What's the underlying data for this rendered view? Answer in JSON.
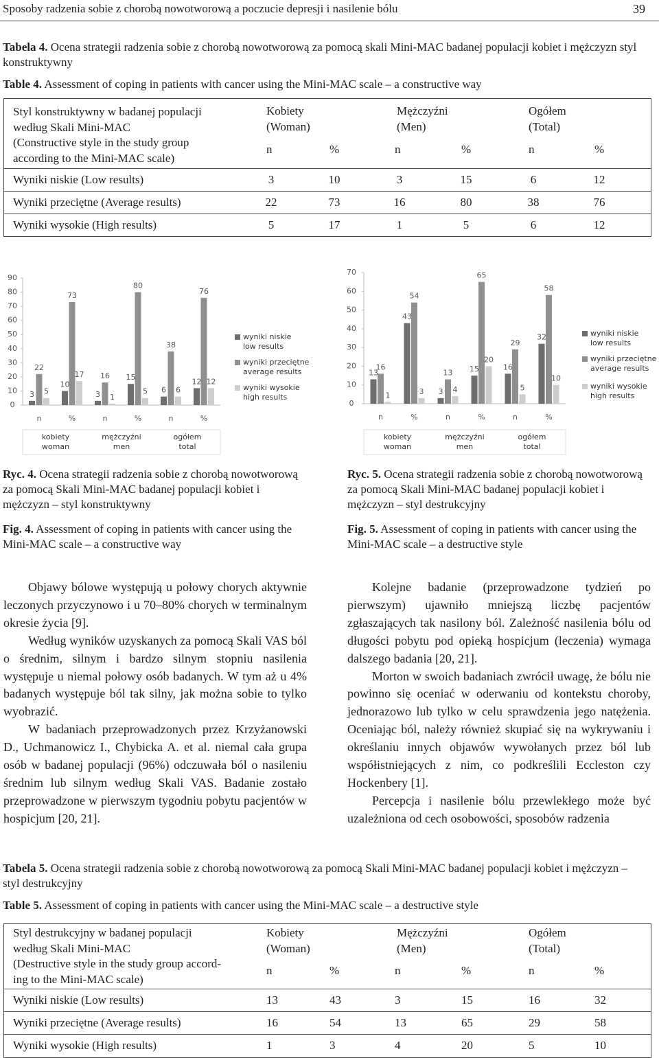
{
  "header": {
    "title": "Sposoby radzenia sobie z chorobą nowotworową a poczucie depresji i nasilenie bólu",
    "page": "39"
  },
  "table4": {
    "label": "Tabela 4.",
    "caption": "Ocena strategii radzenia sobie z chorobą nowotworową za pomocą skali Mini-MAC badanej populacji kobiet i mężczyzn styl konstruktywny",
    "label_en": "Table 4.",
    "caption_en": "Assessment of coping in patients with cancer using the Mini-MAC scale – a constructive way",
    "style": [
      "Styl konstruktywny w badanej populacji",
      "według Skali Mini-MAC",
      "(Constructive style in the study group",
      "according to the Mini-MAC scale)"
    ],
    "groups": [
      [
        "Kobiety",
        "(Woman)"
      ],
      [
        "Mężczyźni",
        "(Men)"
      ],
      [
        "Ogółem",
        "(Total)"
      ]
    ],
    "sub": [
      "n",
      "%",
      "n",
      "%",
      "n",
      "%"
    ],
    "rows": [
      [
        "Wyniki niskie (Low results)",
        3,
        10,
        3,
        15,
        6,
        12
      ],
      [
        "Wyniki przeciętne (Average results)",
        22,
        73,
        16,
        80,
        38,
        76
      ],
      [
        "Wyniki wysokie (High results)",
        5,
        17,
        1,
        5,
        6,
        12
      ]
    ]
  },
  "chart_data": [
    {
      "type": "bar",
      "categories": [
        "n",
        "%",
        "n",
        "%",
        "n",
        "%"
      ],
      "groups": [
        [
          "kobiety",
          "woman"
        ],
        [
          "mężczyźni",
          "men"
        ],
        [
          "ogółem",
          "total"
        ]
      ],
      "series": [
        {
          "name": "wyniki niskie",
          "name_en": "low results",
          "color": "#6e6e6e",
          "values": [
            3,
            10,
            3,
            15,
            6,
            12
          ]
        },
        {
          "name": "wyniki przeciętne",
          "name_en": "average results",
          "color": "#8f8f8f",
          "values": [
            22,
            73,
            16,
            80,
            38,
            76
          ]
        },
        {
          "name": "wyniki wysokie",
          "name_en": "high results",
          "color": "#cdcdcd",
          "values": [
            5,
            17,
            1,
            5,
            6,
            12
          ]
        }
      ],
      "ylim": [
        0,
        90
      ],
      "yticks": [
        0,
        10,
        20,
        30,
        40,
        50,
        60,
        70,
        80,
        90
      ],
      "grid": false,
      "legend": "right"
    },
    {
      "type": "bar",
      "categories": [
        "n",
        "%",
        "n",
        "%",
        "n",
        "%"
      ],
      "groups": [
        [
          "kobiety",
          "woman"
        ],
        [
          "mężczyźni",
          "men"
        ],
        [
          "ogółem",
          "total"
        ]
      ],
      "series": [
        {
          "name": "wyniki niskie",
          "name_en": "low results",
          "color": "#6e6e6e",
          "values": [
            13,
            43,
            3,
            15,
            16,
            32
          ]
        },
        {
          "name": "wyniki przeciętne",
          "name_en": "average results",
          "color": "#8f8f8f",
          "values": [
            16,
            54,
            13,
            65,
            29,
            58
          ]
        },
        {
          "name": "wyniki wysokie",
          "name_en": "high results",
          "color": "#cdcdcd",
          "values": [
            1,
            3,
            4,
            20,
            5,
            10
          ]
        }
      ],
      "ylim": [
        0,
        70
      ],
      "yticks": [
        0,
        10,
        20,
        30,
        40,
        50,
        60,
        70
      ],
      "grid": false,
      "legend": "right"
    }
  ],
  "fig4": {
    "label": "Ryc. 4.",
    "caption": "Ocena strategii radzenia sobie z chorobą nowotworową za pomocą Skali Mini-MAC badanej populacji kobiet i mężczyzn – styl konstruktywny",
    "label_en": "Fig. 4.",
    "caption_en": "Assessment of coping in patients with cancer using the Mini-MAC scale – a constructive way"
  },
  "fig5": {
    "label": "Ryc. 5.",
    "caption": "Ocena strategii radzenia sobie z chorobą nowotworową za pomocą Skali Mini-MAC badanej populacji kobiet i mężczyzn – styl destrukcyjny",
    "label_en": "Fig. 5.",
    "caption_en": "Assessment of coping in patients with cancer using the Mini-MAC scale – a destructive style"
  },
  "text_left": [
    "Objawy bólowe występują u połowy chorych aktywnie leczonych przyczynowo i u 70–80% chorych w terminalnym okresie życia [9].",
    "Według wyników uzyskanych za pomocą Skali VAS ból o średnim, silnym i bardzo silnym stopniu nasilenia występuje u niemal połowy osób badanych. W tym aż u 4% badanych występuje ból tak silny, jak można sobie to tylko wyobrazić.",
    "W badaniach przeprowadzonych przez Krzyżanowski D., Uchmanowicz I., Chybicka A. et al. niemal cała grupa osób w badanej populacji (96%) odczuwała ból o nasileniu średnim lub silnym według Skali VAS. Badanie zostało przeprowadzone w pierwszym tygodniu pobytu pacjentów w hospicjum [20, 21]."
  ],
  "text_right": [
    "Kolejne badanie (przeprowadzone tydzień po pierwszym) ujawniło mniejszą liczbę pacjentów zgłaszających tak nasilony ból. Zależność nasilenia bólu od długości pobytu pod opieką hospicjum (leczenia) wymaga dalszego badania [20, 21].",
    "Morton w swoich badaniach zwrócił uwagę, że bólu nie powinno się oceniać w oderwaniu od kontekstu choroby, jednorazowo lub tylko w celu sprawdzenia jego natężenia. Oceniając ból, należy również skupiać się na wykrywaniu i określaniu innych objawów wywołanych przez ból lub współistniejących z nim, co podkreślili Eccleston czy Hockenbery [1].",
    "Percepcja i nasilenie bólu przewlekłego może być uzależniona od cech osobowości, sposobów radzenia"
  ],
  "table5": {
    "label": "Tabela 5.",
    "caption": "Ocena strategii radzenia sobie z chorobą nowotworową za pomocą Skali Mini-MAC badanej populacji kobiet i mężczyzn – styl destrukcyjny",
    "label_en": "Table 5.",
    "caption_en": "Assessment of coping in patients with cancer using the Mini-MAC scale – a destructive style",
    "style": [
      "Styl destrukcyjny w badanej populacji",
      "według Skali Mini-MAC",
      "(Destructive style in the study group accord-",
      "ing to the Mini-MAC scale)"
    ],
    "groups": [
      [
        "Kobiety",
        "(Woman)"
      ],
      [
        "Mężczyźni",
        "(Men)"
      ],
      [
        "Ogółem",
        "(Total)"
      ]
    ],
    "sub": [
      "n",
      "%",
      "n",
      "%",
      "n",
      "%"
    ],
    "rows": [
      [
        "Wyniki niskie (Low results)",
        13,
        43,
        3,
        15,
        16,
        32
      ],
      [
        "Wyniki przeciętne (Average results)",
        16,
        54,
        13,
        65,
        29,
        58
      ],
      [
        "Wyniki wysokie (High results)",
        1,
        3,
        4,
        20,
        5,
        10
      ]
    ]
  }
}
